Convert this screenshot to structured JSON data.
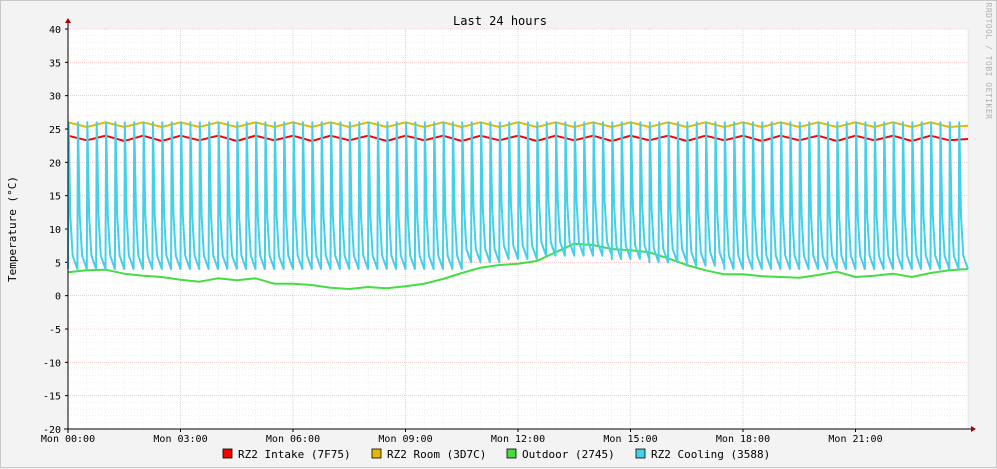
{
  "chart_data": {
    "type": "line",
    "title": "Last 24 hours",
    "ylabel": "Temperature (°C)",
    "xlabel": "",
    "ylim": [
      -20,
      40
    ],
    "yticks": [
      40,
      35,
      30,
      25,
      20,
      15,
      10,
      5,
      0,
      -5,
      -10,
      -15,
      -20
    ],
    "x_range_hours": [
      0,
      24
    ],
    "xticks": [
      {
        "hour": 0,
        "label": "Mon 00:00"
      },
      {
        "hour": 3,
        "label": "Mon 03:00"
      },
      {
        "hour": 6,
        "label": "Mon 06:00"
      },
      {
        "hour": 9,
        "label": "Mon 09:00"
      },
      {
        "hour": 12,
        "label": "Mon 12:00"
      },
      {
        "hour": 15,
        "label": "Mon 15:00"
      },
      {
        "hour": 18,
        "label": "Mon 18:00"
      },
      {
        "hour": 21,
        "label": "Mon 21:00"
      }
    ],
    "grid": true,
    "legend_position": "bottom",
    "credit": "RRDTOOL / TOBI OETIKER",
    "series": [
      {
        "name": "RZ2 Intake (7F75)",
        "color": "#ff0000",
        "hours": [
          0,
          0.5,
          1,
          1.5,
          2,
          2.5,
          3,
          3.5,
          4,
          4.5,
          5,
          5.5,
          6,
          6.5,
          7,
          7.5,
          8,
          8.5,
          9,
          9.5,
          10,
          10.5,
          11,
          11.5,
          12,
          12.5,
          13,
          13.5,
          14,
          14.5,
          15,
          15.5,
          16,
          16.5,
          17,
          17.5,
          18,
          18.5,
          19,
          19.5,
          20,
          20.5,
          21,
          21.5,
          22,
          22.5,
          23,
          23.5,
          24
        ],
        "values": [
          24,
          23.3,
          24,
          23.2,
          24,
          23.2,
          24,
          23.3,
          24,
          23.2,
          24,
          23.3,
          24,
          23.2,
          24,
          23.3,
          24,
          23.2,
          24,
          23.3,
          24,
          23.2,
          24,
          23.3,
          24,
          23.2,
          24,
          23.3,
          24,
          23.2,
          24,
          23.3,
          24,
          23.2,
          24,
          23.3,
          24,
          23.2,
          24,
          23.3,
          24,
          23.2,
          24,
          23.3,
          24,
          23.2,
          24,
          23.3,
          23.5
        ]
      },
      {
        "name": "RZ2 Room (3D7C)",
        "color": "#e8b800",
        "hours": [
          0,
          0.5,
          1,
          1.5,
          2,
          2.5,
          3,
          3.5,
          4,
          4.5,
          5,
          5.5,
          6,
          6.5,
          7,
          7.5,
          8,
          8.5,
          9,
          9.5,
          10,
          10.5,
          11,
          11.5,
          12,
          12.5,
          13,
          13.5,
          14,
          14.5,
          15,
          15.5,
          16,
          16.5,
          17,
          17.5,
          18,
          18.5,
          19,
          19.5,
          20,
          20.5,
          21,
          21.5,
          22,
          22.5,
          23,
          23.5,
          24
        ],
        "values": [
          26,
          25.3,
          26,
          25.3,
          26,
          25.3,
          26,
          25.3,
          26,
          25.3,
          26,
          25.3,
          26,
          25.3,
          26,
          25.3,
          26,
          25.3,
          26,
          25.3,
          26,
          25.3,
          26,
          25.3,
          26,
          25.3,
          26,
          25.3,
          26,
          25.3,
          26,
          25.3,
          26,
          25.3,
          26,
          25.3,
          26,
          25.3,
          26,
          25.3,
          26,
          25.3,
          26,
          25.3,
          26,
          25.3,
          26,
          25.3,
          25.5
        ]
      },
      {
        "name": "Outdoor (2745)",
        "color": "#44dd44",
        "hours": [
          0,
          0.5,
          1,
          1.5,
          2,
          2.5,
          3,
          3.5,
          4,
          4.5,
          5,
          5.5,
          6,
          6.5,
          7,
          7.5,
          8,
          8.5,
          9,
          9.5,
          10,
          10.5,
          11,
          11.5,
          12,
          12.5,
          13,
          13.5,
          14,
          14.5,
          15,
          15.5,
          16,
          16.5,
          17,
          17.5,
          18,
          18.5,
          19,
          19.5,
          20,
          20.5,
          21,
          21.5,
          22,
          22.5,
          23,
          23.5,
          24
        ],
        "values": [
          3.5,
          3.8,
          3.9,
          3.3,
          3,
          2.8,
          2.4,
          2.1,
          2.6,
          2.3,
          2.6,
          1.8,
          1.8,
          1.6,
          1.2,
          1.0,
          1.3,
          1.1,
          1.4,
          1.8,
          2.5,
          3.4,
          4.2,
          4.6,
          4.8,
          5.2,
          6.5,
          7.8,
          7.6,
          7.0,
          6.8,
          6.5,
          5.6,
          4.6,
          3.8,
          3.2,
          3.2,
          2.9,
          2.8,
          2.7,
          3.1,
          3.6,
          2.8,
          3.0,
          3.3,
          2.8,
          3.4,
          3.8,
          4.0
        ]
      },
      {
        "name": "RZ2 Cooling (3588)",
        "color": "#44d0e8",
        "hours": [
          0,
          0.5,
          1,
          1.5,
          2,
          2.5,
          3,
          3.5,
          4,
          4.5,
          5,
          5.5,
          6,
          6.5,
          7,
          7.5,
          8,
          8.5,
          9,
          9.5,
          10,
          10.5,
          11,
          11.5,
          12,
          12.5,
          13,
          13.5,
          14,
          14.5,
          15,
          15.5,
          16,
          16.5,
          17,
          17.5,
          18,
          18.5,
          19,
          19.5,
          20,
          20.5,
          21,
          21.5,
          22,
          22.5,
          23,
          23.5,
          24
        ],
        "values": [
          4,
          26,
          4,
          26,
          4,
          26,
          4,
          26,
          4,
          26,
          4,
          26,
          4,
          26,
          4,
          26,
          4,
          26,
          4,
          26,
          4,
          26,
          5,
          26,
          5.5,
          26,
          6,
          26,
          6,
          26,
          5.5,
          26,
          5,
          26,
          4.5,
          26,
          4,
          26,
          4,
          26,
          4,
          26,
          4,
          26,
          4,
          26,
          4,
          26,
          4
        ],
        "note_pattern": "sawtooth cycling between ~4 and ~26 about every 20 minutes"
      }
    ]
  }
}
